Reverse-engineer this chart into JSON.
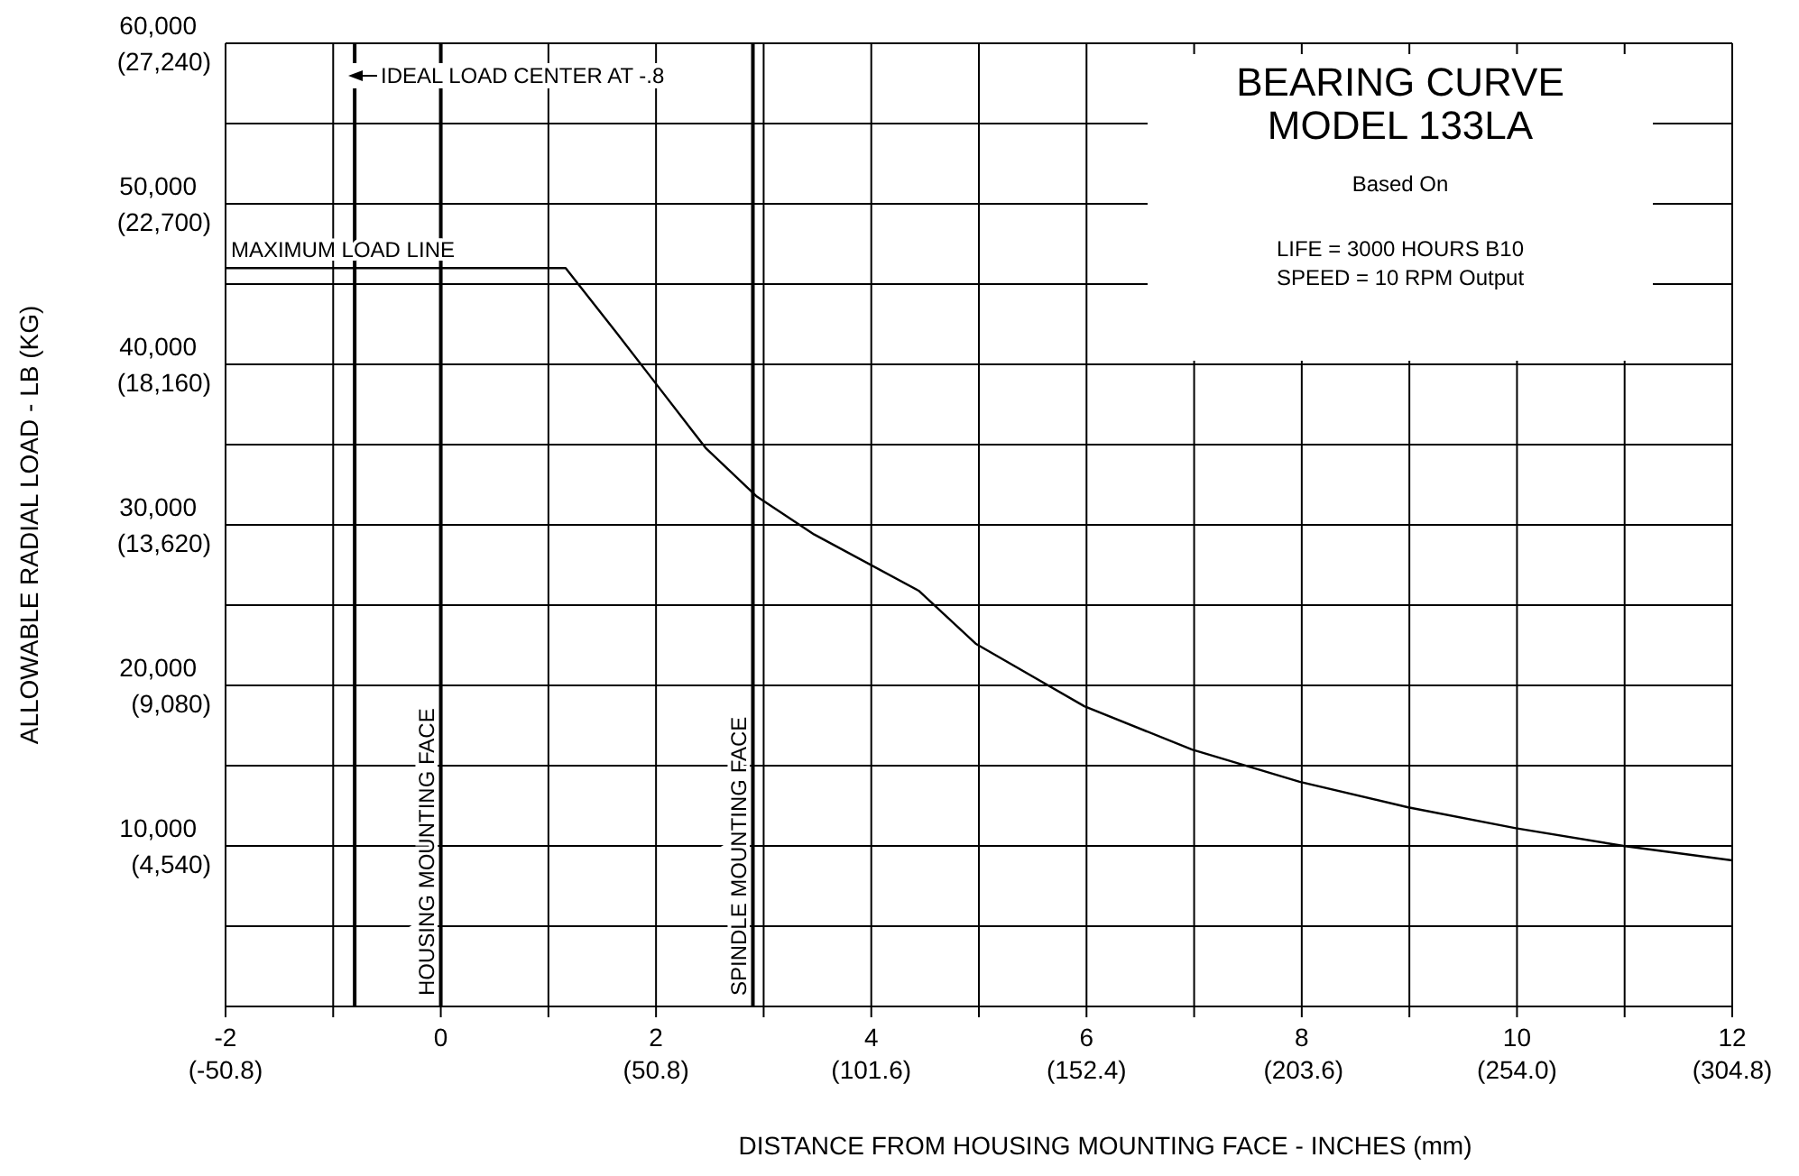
{
  "chart_data": {
    "type": "line",
    "title": "BEARING CURVE",
    "subtitle": "MODEL 133LA",
    "xlabel": "DISTANCE FROM HOUSING MOUNTING FACE - INCHES (mm)",
    "ylabel": "ALLOWABLE RADIAL LOAD - LB (KG)",
    "x": [
      -2,
      1.16,
      1.63,
      2.01,
      2.46,
      2.93,
      3.47,
      4.44,
      4.97,
      5.98,
      6.98,
      7.98,
      8.99,
      9.99,
      10.99,
      12
    ],
    "series": [
      {
        "color": "#000000",
        "values": [
          46000,
          46000,
          42000,
          38700,
          34800,
          31800,
          29400,
          25900,
          22600,
          18700,
          16000,
          14000,
          12400,
          11100,
          10000,
          9100
        ]
      }
    ],
    "xlim": [
      -2,
      12
    ],
    "xticks": [
      -2,
      {
        "value": -1,
        "label": null
      },
      0,
      {
        "value": 1,
        "label": null
      },
      2,
      {
        "value": 3,
        "label": null
      },
      4,
      {
        "value": 5,
        "label": null
      },
      6,
      {
        "value": 7,
        "label": null
      },
      8,
      {
        "value": 9,
        "label": null
      },
      10,
      {
        "value": 11,
        "label": null
      },
      12
    ],
    "x2lim": [
      -50.8,
      304.8
    ],
    "x2ticks": [
      {
        "value": -50.8,
        "label": "(-50.8)"
      },
      {
        "value": 50.8,
        "label": "(50.8)"
      },
      {
        "value": 101.6,
        "label": "(101.6)"
      },
      {
        "value": 152.4,
        "label": "(152.4)"
      },
      {
        "value": 203.6,
        "label": "(203.6)"
      },
      {
        "value": 254,
        "label": "(254.0)"
      },
      {
        "value": 304.8,
        "label": "(304.8)"
      }
    ],
    "ylim": [
      0,
      60000
    ],
    "yticks": [
      {
        "value": 0,
        "label": null
      },
      {
        "value": 5000,
        "label": null
      },
      {
        "value": 10000,
        "label": "10,000"
      },
      {
        "value": 15000,
        "label": null
      },
      {
        "value": 20000,
        "label": "20,000"
      },
      {
        "value": 25000,
        "label": null
      },
      {
        "value": 30000,
        "label": "30,000"
      },
      {
        "value": 35000,
        "label": null
      },
      {
        "value": 40000,
        "label": "40,000"
      },
      {
        "value": 45000,
        "label": null
      },
      {
        "value": 50000,
        "label": "50,000"
      },
      {
        "value": 55000,
        "label": null
      },
      {
        "value": 60000,
        "label": "60,000"
      }
    ],
    "y2lim": [
      0,
      27240
    ],
    "y2ticks": [
      {
        "value": 4540,
        "label": "(4,540)"
      },
      {
        "value": 9080,
        "label": "(9,080)"
      },
      {
        "value": 13620,
        "label": "(13,620)"
      },
      {
        "value": 18160,
        "label": "(18,160)"
      },
      {
        "value": 22700,
        "label": "(22,700)"
      },
      {
        "value": 27240,
        "label": "(27,240)"
      }
    ],
    "grid": true,
    "marker": "none",
    "line_style": "solid",
    "ref_lines": [
      {
        "axis": "x",
        "value": 0,
        "label": "HOUSING MOUNTING FACE",
        "color": "#000000"
      },
      {
        "axis": "x",
        "value": 2.9,
        "label": "SPINDLE MOUNTING FACE",
        "color": "#000000"
      },
      {
        "axis": "x",
        "value": -0.8,
        "label": null,
        "color": "#000000"
      }
    ],
    "annotations": [
      "Based On",
      "LIFE = 3000 HOURS B10",
      "SPEED = 10 RPM Output",
      "IDEAL LOAD CENTER AT -.8",
      {
        "text": "MAXIMUM LOAD LINE",
        "x": -1.95,
        "y": 46000
      }
    ]
  }
}
